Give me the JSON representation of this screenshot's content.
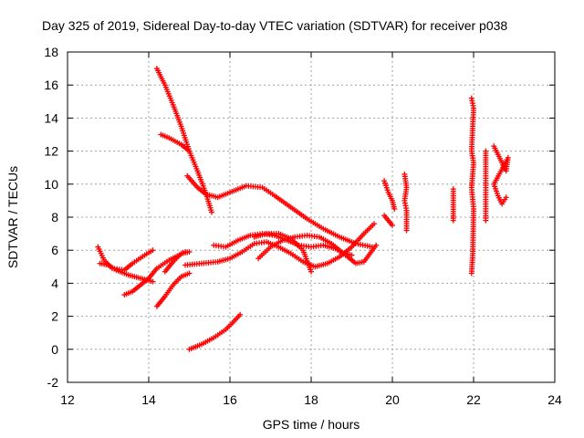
{
  "chart_data": {
    "type": "scatter",
    "title": "Day 325 of 2019, Sidereal Day-to-day VTEC variation (SDTVAR) for receiver p038",
    "xlabel": "GPS time / hours",
    "ylabel": "SDTVAR / TECUs",
    "xlim": [
      12,
      24
    ],
    "ylim": [
      -2,
      18
    ],
    "xticks": [
      "12",
      "14",
      "16",
      "18",
      "20",
      "22",
      "24"
    ],
    "yticks": [
      "-2",
      "0",
      "2",
      "4",
      "6",
      "8",
      "10",
      "12",
      "14",
      "16",
      "18"
    ],
    "grid": true,
    "marker": "+",
    "color": "#ff0000",
    "segments": [
      [
        [
          12.75,
          6.2
        ],
        [
          12.9,
          5.4
        ],
        [
          13.1,
          4.9
        ],
        [
          13.4,
          4.8
        ],
        [
          13.6,
          5.2
        ],
        [
          13.9,
          5.7
        ],
        [
          14.1,
          6.0
        ]
      ],
      [
        [
          12.8,
          5.2
        ],
        [
          13.0,
          5.1
        ],
        [
          13.2,
          4.8
        ],
        [
          13.5,
          4.5
        ],
        [
          13.8,
          4.3
        ],
        [
          14.1,
          4.1
        ]
      ],
      [
        [
          13.4,
          3.3
        ],
        [
          13.6,
          3.5
        ],
        [
          13.8,
          3.9
        ],
        [
          14.0,
          4.3
        ],
        [
          14.2,
          4.9
        ],
        [
          14.5,
          5.4
        ],
        [
          14.9,
          5.9
        ]
      ],
      [
        [
          14.2,
          2.6
        ],
        [
          14.4,
          3.2
        ],
        [
          14.6,
          3.9
        ],
        [
          14.8,
          4.4
        ],
        [
          15.0,
          4.6
        ]
      ],
      [
        [
          14.4,
          4.7
        ],
        [
          14.6,
          5.3
        ],
        [
          14.8,
          5.8
        ],
        [
          15.0,
          5.9
        ]
      ],
      [
        [
          14.2,
          17.0
        ],
        [
          14.4,
          16.0
        ],
        [
          14.6,
          14.8
        ],
        [
          14.8,
          13.5
        ],
        [
          15.0,
          12.0
        ],
        [
          15.2,
          10.8
        ],
        [
          15.4,
          9.5
        ],
        [
          15.55,
          8.3
        ]
      ],
      [
        [
          14.3,
          13.0
        ],
        [
          14.5,
          12.8
        ],
        [
          14.8,
          12.4
        ],
        [
          15.0,
          12.0
        ]
      ],
      [
        [
          14.95,
          10.5
        ],
        [
          15.2,
          9.8
        ],
        [
          15.4,
          9.4
        ],
        [
          15.7,
          9.2
        ],
        [
          16.0,
          9.5
        ],
        [
          16.4,
          9.9
        ],
        [
          16.8,
          9.8
        ],
        [
          17.1,
          9.3
        ],
        [
          17.5,
          8.6
        ],
        [
          17.9,
          7.9
        ],
        [
          18.3,
          7.3
        ],
        [
          18.7,
          6.8
        ],
        [
          19.1,
          6.4
        ],
        [
          19.5,
          6.2
        ]
      ],
      [
        [
          15.0,
          0.0
        ],
        [
          15.3,
          0.3
        ],
        [
          15.6,
          0.7
        ],
        [
          15.9,
          1.2
        ],
        [
          16.1,
          1.7
        ],
        [
          16.25,
          2.1
        ]
      ],
      [
        [
          14.9,
          5.1
        ],
        [
          15.3,
          5.2
        ],
        [
          15.7,
          5.3
        ],
        [
          16.0,
          5.5
        ],
        [
          16.3,
          5.9
        ],
        [
          16.6,
          6.4
        ],
        [
          16.9,
          6.5
        ],
        [
          17.2,
          6.2
        ],
        [
          17.5,
          5.8
        ],
        [
          17.8,
          5.3
        ],
        [
          18.1,
          5.0
        ],
        [
          18.4,
          5.2
        ],
        [
          18.7,
          5.6
        ],
        [
          19.0,
          6.2
        ],
        [
          19.3,
          7.0
        ],
        [
          19.55,
          7.6
        ]
      ],
      [
        [
          15.6,
          6.3
        ],
        [
          15.9,
          6.2
        ],
        [
          16.2,
          6.6
        ],
        [
          16.5,
          6.9
        ],
        [
          16.8,
          7.0
        ],
        [
          17.1,
          6.9
        ],
        [
          17.4,
          6.6
        ],
        [
          17.7,
          6.3
        ],
        [
          18.0,
          6.2
        ],
        [
          18.3,
          6.3
        ],
        [
          18.6,
          6.1
        ],
        [
          18.9,
          5.6
        ],
        [
          19.1,
          5.2
        ],
        [
          19.3,
          5.3
        ],
        [
          19.6,
          6.3
        ]
      ],
      [
        [
          16.7,
          5.5
        ],
        [
          17.0,
          6.2
        ],
        [
          17.3,
          6.6
        ],
        [
          17.6,
          6.8
        ],
        [
          17.9,
          6.9
        ],
        [
          18.2,
          6.8
        ],
        [
          18.5,
          6.4
        ],
        [
          18.8,
          5.8
        ],
        [
          19.0,
          5.7
        ]
      ],
      [
        [
          16.6,
          6.8
        ],
        [
          16.9,
          7.0
        ],
        [
          17.2,
          7.0
        ],
        [
          17.5,
          6.7
        ],
        [
          17.8,
          6.0
        ],
        [
          18.0,
          4.7
        ]
      ],
      [
        [
          19.8,
          10.2
        ],
        [
          19.9,
          9.5
        ],
        [
          20.0,
          9.0
        ],
        [
          20.05,
          8.5
        ]
      ],
      [
        [
          19.8,
          8.1
        ],
        [
          19.9,
          7.8
        ],
        [
          20.0,
          7.5
        ]
      ],
      [
        [
          20.3,
          10.6
        ],
        [
          20.35,
          9.8
        ],
        [
          20.3,
          9.0
        ],
        [
          20.35,
          8.4
        ],
        [
          20.35,
          7.2
        ]
      ],
      [
        [
          21.5,
          9.7
        ],
        [
          21.5,
          7.8
        ]
      ],
      [
        [
          21.95,
          15.2
        ],
        [
          22.0,
          14.6
        ],
        [
          21.95,
          12.0
        ],
        [
          22.0,
          11.3
        ],
        [
          21.95,
          9.8
        ],
        [
          22.0,
          8.5
        ],
        [
          21.98,
          5.8
        ],
        [
          21.95,
          4.6
        ]
      ],
      [
        [
          22.3,
          12.0
        ],
        [
          22.3,
          11.2
        ],
        [
          22.3,
          10.5
        ],
        [
          22.3,
          9.5
        ],
        [
          22.3,
          7.8
        ]
      ],
      [
        [
          22.5,
          12.3
        ],
        [
          22.6,
          11.8
        ],
        [
          22.7,
          11.3
        ],
        [
          22.8,
          10.8
        ],
        [
          22.85,
          11.6
        ],
        [
          22.5,
          10.0
        ],
        [
          22.6,
          9.3
        ],
        [
          22.7,
          8.8
        ],
        [
          22.8,
          9.2
        ]
      ]
    ]
  }
}
